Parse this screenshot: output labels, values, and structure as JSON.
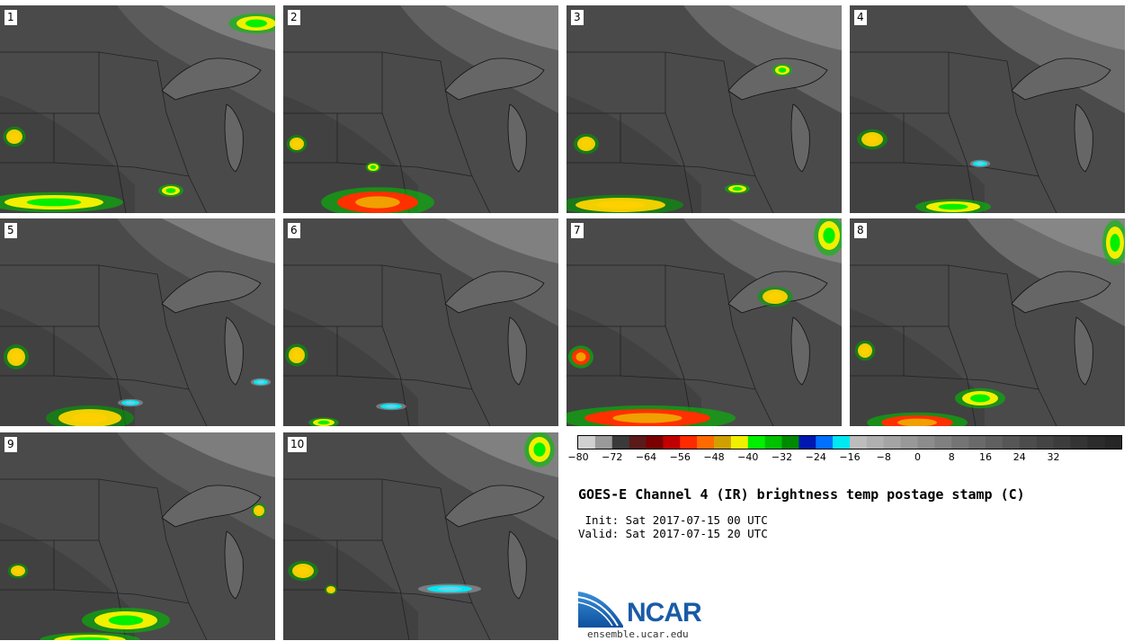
{
  "panels": [
    {
      "label": "1"
    },
    {
      "label": "2"
    },
    {
      "label": "3"
    },
    {
      "label": "4"
    },
    {
      "label": "5"
    },
    {
      "label": "6"
    },
    {
      "label": "7"
    },
    {
      "label": "8"
    },
    {
      "label": "9"
    },
    {
      "label": "10"
    }
  ],
  "colorbar": {
    "colors": [
      "#d0d0d0",
      "#9a9a9a",
      "#3a3a3a",
      "#5a1a1a",
      "#7a0000",
      "#c00000",
      "#ff2a00",
      "#ff6a00",
      "#d0a000",
      "#f0f000",
      "#00f000",
      "#00c000",
      "#008800",
      "#0018b0",
      "#0070ff",
      "#00e8f0",
      "#bdbdbd",
      "#b0b0b0",
      "#a4a4a4",
      "#989898",
      "#8c8c8c",
      "#808080",
      "#747474",
      "#6a6a6a",
      "#606060",
      "#565656",
      "#4c4c4c",
      "#444444",
      "#3c3c3c",
      "#343434",
      "#2c2c2c",
      "#262626"
    ],
    "ticks": [
      "−80",
      "−72",
      "−64",
      "−56",
      "−48",
      "−40",
      "−32",
      "−24",
      "−16",
      "−8",
      "0",
      "8",
      "16",
      "24",
      "32"
    ]
  },
  "title": "GOES-E Channel 4 (IR) brightness temp postage stamp (C)",
  "init": " Init: Sat 2017-07-15 00 UTC",
  "valid": "Valid: Sat 2017-07-15 20 UTC",
  "logo_text": "NCAR",
  "site": "ensemble.ucar.edu"
}
